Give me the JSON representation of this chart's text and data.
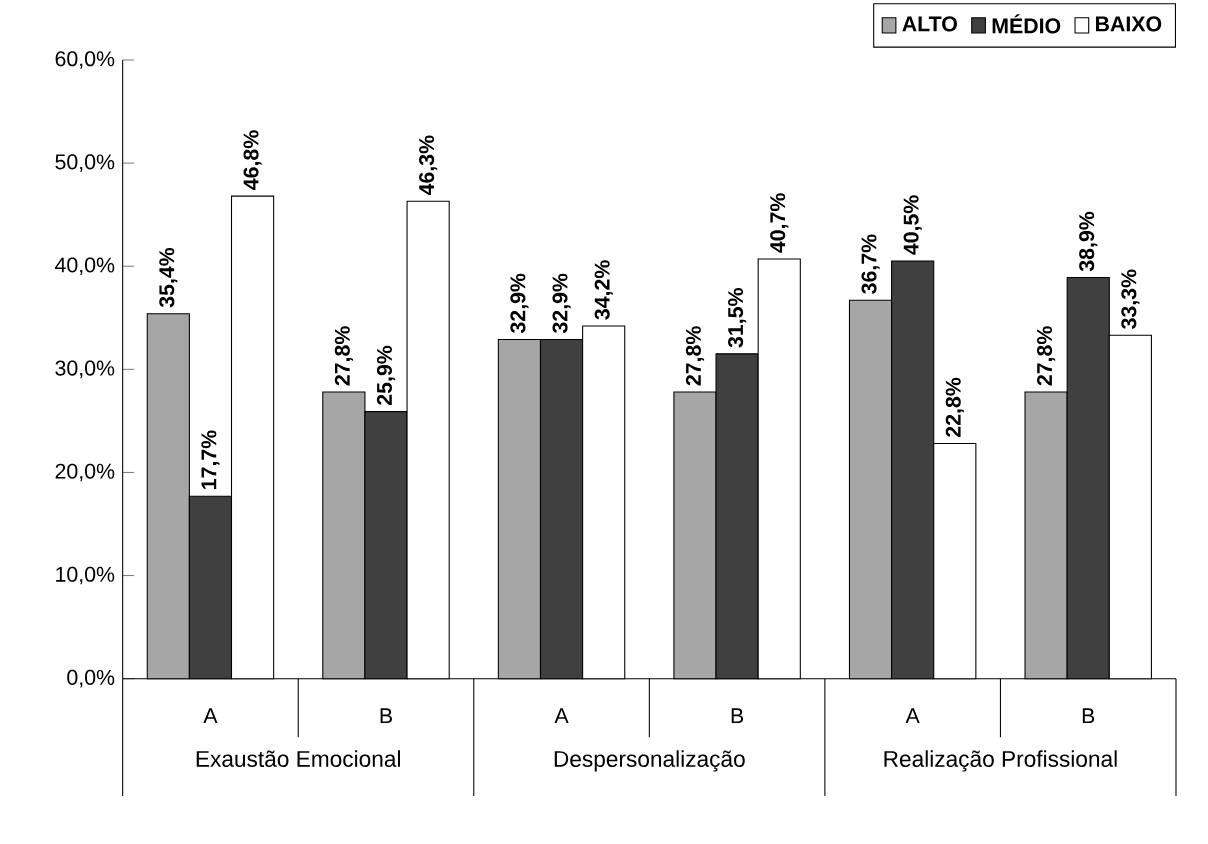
{
  "chart_data": {
    "type": "bar",
    "categories": [
      "A",
      "B",
      "A",
      "B",
      "A",
      "B"
    ],
    "series": [
      {
        "name": "ALTO",
        "color": "#a6a6a6",
        "values": [
          35.4,
          27.8,
          32.9,
          27.8,
          36.7,
          27.8
        ],
        "value_labels": [
          "35,4%",
          "27,8%",
          "32,9%",
          "27,8%",
          "36,7%",
          "27,8%"
        ]
      },
      {
        "name": "MÉDIO",
        "color": "#404040",
        "values": [
          17.7,
          25.9,
          32.9,
          31.5,
          40.5,
          38.9
        ],
        "value_labels": [
          "17,7%",
          "25,9%",
          "32,9%",
          "31,5%",
          "40,5%",
          "38,9%"
        ]
      },
      {
        "name": "BAIXO",
        "color": "#ffffff",
        "values": [
          46.8,
          46.3,
          34.2,
          40.7,
          22.8,
          33.3
        ],
        "value_labels": [
          "46,8%",
          "46,3%",
          "34,2%",
          "40,7%",
          "22,8%",
          "33,3%"
        ]
      }
    ],
    "ylim": [
      0,
      60
    ],
    "yticks": [
      {
        "value": 0,
        "label": "0,0%"
      },
      {
        "value": 10,
        "label": "10,0%"
      },
      {
        "value": 20,
        "label": "20,0%"
      },
      {
        "value": 30,
        "label": "30,0%"
      },
      {
        "value": 40,
        "label": "40,0%"
      },
      {
        "value": 50,
        "label": "50,0%"
      },
      {
        "value": 60,
        "label": "60,0%"
      }
    ],
    "annotations": [
      "Exaustão Emocional",
      "Despersonalização",
      "Realização Profissional"
    ],
    "legend": "top right",
    "grid": false
  }
}
